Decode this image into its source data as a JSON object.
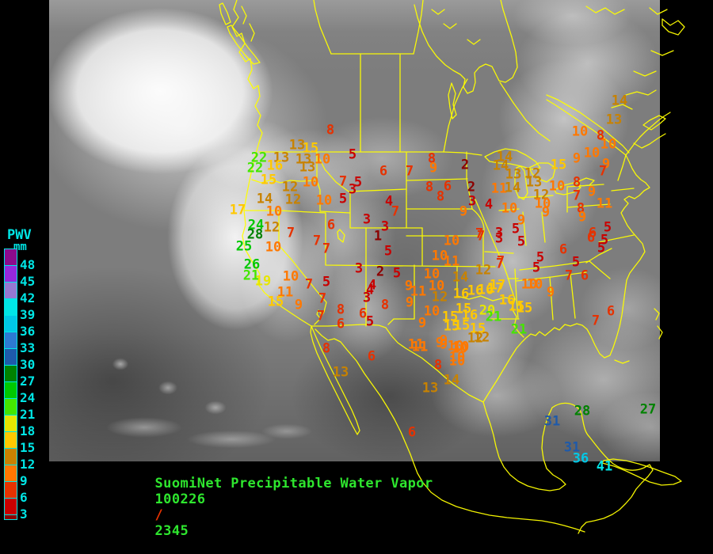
{
  "footer": {
    "title": "SuomiNet Precipitable Water Vapor",
    "date": "100226",
    "separator": "/",
    "time": "2345",
    "title_color": "#2ee62e",
    "separator_color": "#e63200"
  },
  "legend": {
    "title": "PWV",
    "unit": "mm",
    "label_color": "#00e6e6",
    "cells": [
      {
        "color": "#8c0a8c",
        "label": "48"
      },
      {
        "color": "#9628dc",
        "label": "45"
      },
      {
        "color": "#9678d2",
        "label": "42"
      },
      {
        "color": "#00e6e6",
        "label": "39"
      },
      {
        "color": "#00c8e6",
        "label": "36"
      },
      {
        "color": "#2d7ad2",
        "label": "33"
      },
      {
        "color": "#1e5aaa",
        "label": "30"
      },
      {
        "color": "#008200",
        "label": "27"
      },
      {
        "color": "#00c800",
        "label": "24"
      },
      {
        "color": "#44e600",
        "label": "21"
      },
      {
        "color": "#e6e600",
        "label": "18"
      },
      {
        "color": "#ffc800",
        "label": "15"
      },
      {
        "color": "#c88200",
        "label": "12"
      },
      {
        "color": "#ff7800",
        "label": "9"
      },
      {
        "color": "#e63200",
        "label": "6"
      },
      {
        "color": "#c80000",
        "label": "3"
      },
      {
        "color": "#8c0000",
        "label": ""
      }
    ]
  },
  "map": {
    "border_color": "#ffff00"
  },
  "stations": {
    "under_3_color": "#8c0000",
    "bucket_colors": [
      "#c80000",
      "#e63200",
      "#ff7800",
      "#c88200",
      "#ffc800",
      "#e6e600",
      "#44e600",
      "#00c800",
      "#008200",
      "#1e5aaa",
      "#2d7ad2",
      "#00c8e6",
      "#00e6e6",
      "#9678d2",
      "#9628dc",
      "#8c0a8c"
    ],
    "points": [
      [
        8,
        417,
        165
      ],
      [
        13,
        375,
        184
      ],
      [
        15,
        392,
        188
      ],
      [
        22,
        327,
        200
      ],
      [
        13,
        355,
        200
      ],
      [
        13,
        383,
        202
      ],
      [
        10,
        407,
        202
      ],
      [
        22,
        322,
        213
      ],
      [
        16,
        347,
        210
      ],
      [
        13,
        388,
        212
      ],
      [
        5,
        445,
        196
      ],
      [
        15,
        339,
        228
      ],
      [
        12,
        366,
        237
      ],
      [
        10,
        392,
        231
      ],
      [
        7,
        433,
        230
      ],
      [
        5,
        452,
        231
      ],
      [
        3,
        445,
        240
      ],
      [
        14,
        334,
        252
      ],
      [
        12,
        370,
        253
      ],
      [
        10,
        409,
        254
      ],
      [
        5,
        433,
        252
      ],
      [
        17,
        300,
        266
      ],
      [
        10,
        346,
        268
      ],
      [
        3,
        463,
        278
      ],
      [
        6,
        418,
        285
      ],
      [
        24,
        323,
        285
      ],
      [
        12,
        343,
        288
      ],
      [
        28,
        322,
        297
      ],
      [
        7,
        367,
        295
      ],
      [
        25,
        308,
        312
      ],
      [
        10,
        345,
        313
      ],
      [
        7,
        400,
        305
      ],
      [
        7,
        412,
        315
      ],
      [
        26,
        318,
        335
      ],
      [
        3,
        453,
        340
      ],
      [
        21,
        317,
        349
      ],
      [
        19,
        332,
        356
      ],
      [
        10,
        367,
        350
      ],
      [
        7,
        390,
        360
      ],
      [
        5,
        412,
        357
      ],
      [
        11,
        360,
        370
      ],
      [
        4,
        467,
        367
      ],
      [
        3,
        463,
        377
      ],
      [
        15,
        348,
        382
      ],
      [
        9,
        377,
        386
      ],
      [
        7,
        407,
        378
      ],
      [
        8,
        430,
        392
      ],
      [
        6,
        458,
        397
      ],
      [
        7,
        405,
        400
      ],
      [
        6,
        430,
        410
      ],
      [
        5,
        467,
        407
      ],
      [
        6,
        484,
        217
      ],
      [
        7,
        517,
        217
      ],
      [
        8,
        545,
        201
      ],
      [
        9,
        547,
        213
      ],
      [
        2,
        587,
        209
      ],
      [
        8,
        542,
        237
      ],
      [
        6,
        565,
        236
      ],
      [
        8,
        556,
        249
      ],
      [
        2,
        595,
        237
      ],
      [
        3,
        596,
        255
      ],
      [
        9,
        585,
        268
      ],
      [
        4,
        491,
        255
      ],
      [
        7,
        499,
        268
      ],
      [
        3,
        486,
        287
      ],
      [
        1,
        477,
        299
      ],
      [
        10,
        570,
        305
      ],
      [
        7,
        607,
        299
      ],
      [
        5,
        490,
        318
      ],
      [
        14,
        637,
        199
      ],
      [
        14,
        632,
        210
      ],
      [
        13,
        648,
        221
      ],
      [
        12,
        672,
        220
      ],
      [
        13,
        674,
        231
      ],
      [
        11,
        630,
        239
      ],
      [
        14,
        647,
        238
      ],
      [
        15,
        705,
        209
      ],
      [
        9,
        728,
        201
      ],
      [
        10,
        747,
        194
      ],
      [
        8,
        758,
        172
      ],
      [
        10,
        768,
        183
      ],
      [
        9,
        765,
        208
      ],
      [
        10,
        703,
        236
      ],
      [
        8,
        728,
        231
      ],
      [
        7,
        728,
        248
      ],
      [
        9,
        747,
        243
      ],
      [
        11,
        763,
        258
      ],
      [
        12,
        683,
        247
      ],
      [
        10,
        685,
        258
      ],
      [
        9,
        689,
        269
      ],
      [
        4,
        617,
        259
      ],
      [
        10,
        643,
        264
      ],
      [
        9,
        658,
        279
      ],
      [
        5,
        651,
        290
      ],
      [
        8,
        733,
        264
      ],
      [
        9,
        735,
        275
      ],
      [
        3,
        630,
        295
      ],
      [
        7,
        605,
        296
      ],
      [
        6,
        748,
        295
      ],
      [
        5,
        767,
        288
      ],
      [
        14,
        782,
        128
      ],
      [
        13,
        775,
        152
      ],
      [
        10,
        732,
        167
      ],
      [
        7,
        761,
        217
      ],
      [
        10,
        555,
        324
      ],
      [
        11,
        570,
        331
      ],
      [
        2,
        480,
        344
      ],
      [
        5,
        501,
        346
      ],
      [
        12,
        610,
        342
      ],
      [
        7,
        631,
        334
      ],
      [
        10,
        545,
        347
      ],
      [
        14,
        581,
        351
      ],
      [
        4,
        470,
        361
      ],
      [
        9,
        516,
        362
      ],
      [
        11,
        528,
        369
      ],
      [
        10,
        551,
        362
      ],
      [
        16,
        582,
        372
      ],
      [
        16,
        600,
        368
      ],
      [
        16,
        613,
        367
      ],
      [
        17,
        625,
        365
      ],
      [
        8,
        486,
        386
      ],
      [
        9,
        517,
        383
      ],
      [
        12,
        555,
        376
      ],
      [
        15,
        585,
        391
      ],
      [
        20,
        615,
        393
      ],
      [
        10,
        545,
        394
      ],
      [
        15,
        568,
        401
      ],
      [
        16,
        593,
        399
      ],
      [
        21,
        623,
        401
      ],
      [
        9,
        533,
        409
      ],
      [
        15,
        583,
        412
      ],
      [
        15,
        603,
        416
      ],
      [
        12,
        608,
        427
      ],
      [
        11,
        525,
        436
      ],
      [
        9,
        555,
        434
      ],
      [
        10,
        582,
        439
      ],
      [
        10,
        577,
        452
      ],
      [
        10,
        668,
        360
      ],
      [
        16,
        640,
        380
      ],
      [
        15,
        662,
        390
      ],
      [
        15,
        570,
        413
      ],
      [
        12,
        600,
        428
      ],
      [
        21,
        655,
        417
      ],
      [
        9,
        560,
        431
      ],
      [
        10,
        575,
        438
      ],
      [
        3,
        630,
        302
      ],
      [
        5,
        658,
        306
      ],
      [
        6,
        711,
        316
      ],
      [
        6,
        746,
        301
      ],
      [
        5,
        763,
        304
      ],
      [
        5,
        759,
        314
      ],
      [
        5,
        682,
        326
      ],
      [
        5,
        677,
        339
      ],
      [
        5,
        727,
        332
      ],
      [
        7,
        632,
        331
      ],
      [
        7,
        718,
        349
      ],
      [
        6,
        738,
        349
      ],
      [
        10,
        675,
        360
      ],
      [
        9,
        695,
        370
      ],
      [
        17,
        628,
        361
      ],
      [
        15,
        652,
        388
      ],
      [
        6,
        771,
        394
      ],
      [
        7,
        752,
        406
      ],
      [
        8,
        412,
        441
      ],
      [
        6,
        469,
        451
      ],
      [
        13,
        430,
        471
      ],
      [
        11,
        530,
        439
      ],
      [
        9,
        560,
        436
      ],
      [
        10,
        580,
        441
      ],
      [
        8,
        553,
        462
      ],
      [
        10,
        577,
        457
      ],
      [
        14,
        570,
        481
      ],
      [
        13,
        543,
        491
      ],
      [
        6,
        520,
        547
      ],
      [
        31,
        697,
        533
      ],
      [
        28,
        735,
        520
      ],
      [
        27,
        818,
        518
      ],
      [
        31,
        722,
        566
      ],
      [
        36,
        733,
        580
      ],
      [
        41,
        763,
        590
      ]
    ]
  }
}
